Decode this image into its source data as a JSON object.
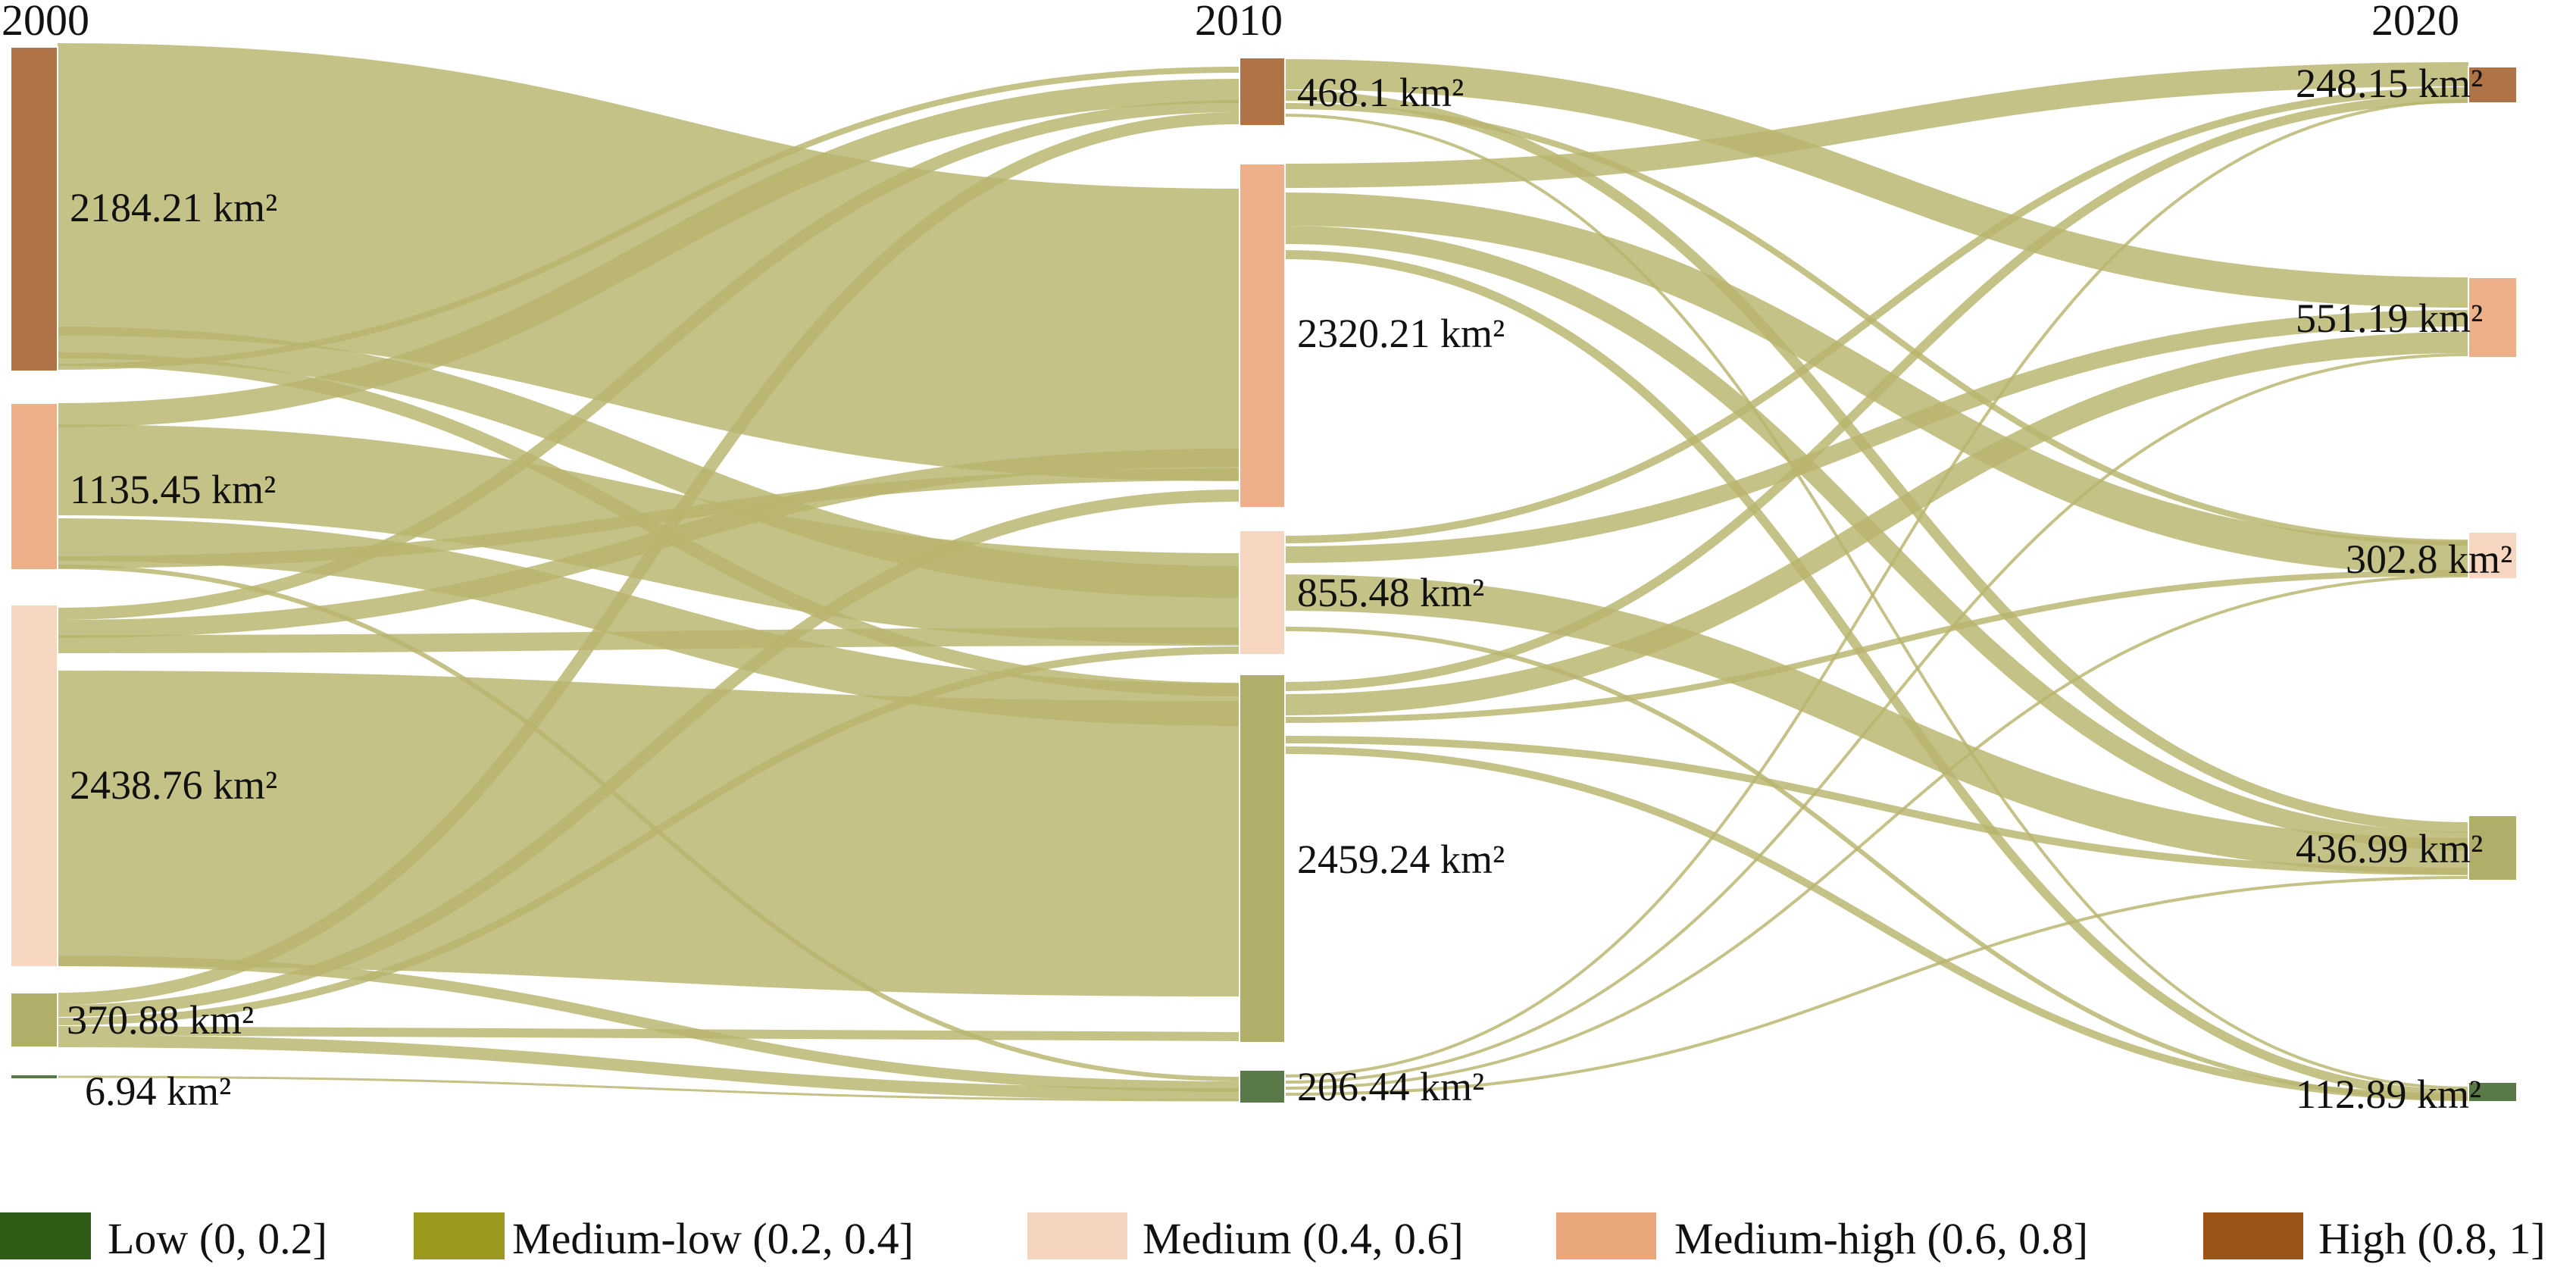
{
  "colors": {
    "low": "#2e5c17",
    "medium_low": "#9c9a1e",
    "medium": "#f5d5bf",
    "medium_high": "#eba77c",
    "high": "#9c5416",
    "node_low": "#597a48",
    "node_medium_low": "#b1ae6a",
    "node_medium": "#f6d6c1",
    "node_medium_high": "#eeb08b",
    "node_high": "#b07348",
    "flow": "#b8b46e"
  },
  "years": [
    "2000",
    "2010",
    "2020"
  ],
  "nodes": [
    {
      "id": "a_high",
      "col": 0,
      "cls": "high",
      "label": "2184.21 km²"
    },
    {
      "id": "a_mh",
      "col": 0,
      "cls": "medium_high",
      "label": "1135.45 km²"
    },
    {
      "id": "a_m",
      "col": 0,
      "cls": "medium",
      "label": "2438.76 km²"
    },
    {
      "id": "a_ml",
      "col": 0,
      "cls": "medium_low",
      "label": "370.88 km²"
    },
    {
      "id": "a_low",
      "col": 0,
      "cls": "low",
      "label": "6.94 km²"
    },
    {
      "id": "b_high",
      "col": 1,
      "cls": "high",
      "label": "468.1 km²"
    },
    {
      "id": "b_mh",
      "col": 1,
      "cls": "medium_high",
      "label": "2320.21 km²"
    },
    {
      "id": "b_m",
      "col": 1,
      "cls": "medium",
      "label": "855.48 km²"
    },
    {
      "id": "b_ml",
      "col": 1,
      "cls": "medium_low",
      "label": "2459.24 km²"
    },
    {
      "id": "b_low",
      "col": 1,
      "cls": "low",
      "label": "206.44 km²"
    },
    {
      "id": "c_high",
      "col": 2,
      "cls": "high",
      "label": "248.15 km²"
    },
    {
      "id": "c_mh",
      "col": 2,
      "cls": "medium_high",
      "label": "551.19 km²"
    },
    {
      "id": "c_m",
      "col": 2,
      "cls": "medium",
      "label": "302.8 km²"
    },
    {
      "id": "c_ml",
      "col": 2,
      "cls": "medium_low",
      "label": "436.99 km²"
    },
    {
      "id": "c_low",
      "col": 2,
      "cls": "low",
      "label": "112.89 km²"
    }
  ],
  "legend": [
    {
      "cls": "low",
      "label": "Low (0, 0.2]"
    },
    {
      "cls": "medium_low",
      "label": "Medium-low (0.2, 0.4]"
    },
    {
      "cls": "medium",
      "label": "Medium (0.4, 0.6]"
    },
    {
      "cls": "medium_high",
      "label": "Medium-high (0.6, 0.8]"
    },
    {
      "cls": "high",
      "label": "High (0.8, 1]"
    }
  ]
}
